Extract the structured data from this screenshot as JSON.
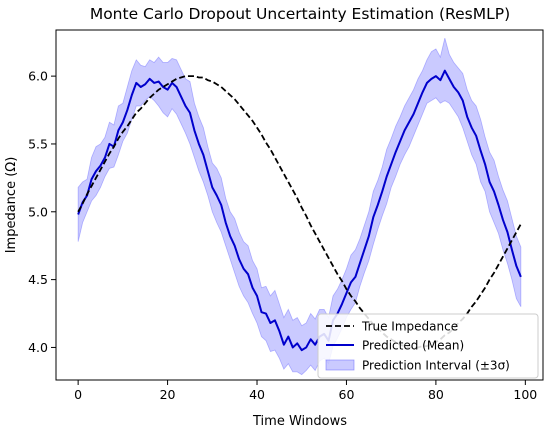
{
  "chart_data": {
    "type": "line",
    "title": "Monte Carlo Dropout Uncertainty Estimation (ResMLP)",
    "xlabel": "Time Windows",
    "ylabel": "Impedance (Ω)",
    "xlim": [
      -4.95,
      103.95
    ],
    "ylim": [
      3.76,
      6.34
    ],
    "xticks": [
      0,
      20,
      40,
      60,
      80,
      100
    ],
    "xtick_labels": [
      "0",
      "20",
      "40",
      "60",
      "80",
      "100"
    ],
    "yticks": [
      4.0,
      4.5,
      5.0,
      5.5,
      6.0
    ],
    "ytick_labels": [
      "4.0",
      "4.5",
      "5.0",
      "5.5",
      "6.0"
    ],
    "grid": false,
    "legend_position": "lower-right",
    "legend": [
      "True Impedance",
      "Predicted (Mean)",
      "Prediction Interval (±3σ)"
    ],
    "x": [
      0,
      1,
      2,
      3,
      4,
      5,
      6,
      7,
      8,
      9,
      10,
      11,
      12,
      13,
      14,
      15,
      16,
      17,
      18,
      19,
      20,
      21,
      22,
      23,
      24,
      25,
      26,
      27,
      28,
      29,
      30,
      31,
      32,
      33,
      34,
      35,
      36,
      37,
      38,
      39,
      40,
      41,
      42,
      43,
      44,
      45,
      46,
      47,
      48,
      49,
      50,
      51,
      52,
      53,
      54,
      55,
      56,
      57,
      58,
      59,
      60,
      61,
      62,
      63,
      64,
      65,
      66,
      67,
      68,
      69,
      70,
      71,
      72,
      73,
      74,
      75,
      76,
      77,
      78,
      79,
      80,
      81,
      82,
      83,
      84,
      85,
      86,
      87,
      88,
      89,
      90,
      91,
      92,
      93,
      94,
      95,
      96,
      97,
      98,
      99
    ],
    "series": [
      {
        "name": "True Impedance",
        "style": "dashed",
        "color": "#000000",
        "values": [
          5.0,
          5.06,
          5.13,
          5.19,
          5.25,
          5.31,
          5.37,
          5.43,
          5.48,
          5.54,
          5.59,
          5.63,
          5.68,
          5.73,
          5.76,
          5.8,
          5.84,
          5.87,
          5.9,
          5.92,
          5.94,
          5.96,
          5.98,
          5.99,
          6.0,
          6.0,
          6.0,
          5.99,
          5.99,
          5.97,
          5.96,
          5.94,
          5.92,
          5.89,
          5.86,
          5.83,
          5.79,
          5.75,
          5.71,
          5.67,
          5.62,
          5.57,
          5.51,
          5.46,
          5.4,
          5.34,
          5.28,
          5.22,
          5.16,
          5.1,
          5.03,
          4.97,
          4.9,
          4.84,
          4.78,
          4.72,
          4.66,
          4.6,
          4.54,
          4.49,
          4.43,
          4.38,
          4.34,
          4.29,
          4.25,
          4.21,
          4.17,
          4.14,
          4.11,
          4.08,
          4.06,
          4.04,
          4.02,
          4.01,
          4.0,
          4.0,
          4.0,
          4.01,
          4.01,
          4.03,
          4.04,
          4.06,
          4.09,
          4.11,
          4.14,
          4.18,
          4.21,
          4.25,
          4.3,
          4.34,
          4.39,
          4.44,
          4.5,
          4.55,
          4.61,
          4.67,
          4.73,
          4.79,
          4.85,
          4.91
        ]
      },
      {
        "name": "Predicted (Mean)",
        "style": "solid",
        "color": "#0000cc",
        "values": [
          4.98,
          5.07,
          5.12,
          5.24,
          5.3,
          5.34,
          5.4,
          5.5,
          5.48,
          5.6,
          5.66,
          5.75,
          5.86,
          5.95,
          5.92,
          5.94,
          5.98,
          5.95,
          5.96,
          5.92,
          5.9,
          5.95,
          5.92,
          5.85,
          5.78,
          5.73,
          5.6,
          5.5,
          5.42,
          5.3,
          5.18,
          5.12,
          5.05,
          4.92,
          4.82,
          4.75,
          4.65,
          4.58,
          4.54,
          4.44,
          4.38,
          4.26,
          4.25,
          4.18,
          4.2,
          4.12,
          4.02,
          4.08,
          4.0,
          4.03,
          3.98,
          4.0,
          4.06,
          4.02,
          4.08,
          4.1,
          4.05,
          4.2,
          4.25,
          4.32,
          4.4,
          4.48,
          4.52,
          4.62,
          4.72,
          4.82,
          4.96,
          5.05,
          5.15,
          5.26,
          5.35,
          5.44,
          5.52,
          5.6,
          5.66,
          5.72,
          5.8,
          5.88,
          5.95,
          5.98,
          6.0,
          5.97,
          6.04,
          5.98,
          5.92,
          5.88,
          5.82,
          5.7,
          5.62,
          5.56,
          5.45,
          5.35,
          5.22,
          5.15,
          5.05,
          4.94,
          4.85,
          4.72,
          4.6,
          4.52
        ]
      },
      {
        "name": "Prediction Interval (±3σ)",
        "style": "band",
        "color": "#6666ff",
        "lower": [
          4.78,
          4.92,
          5.0,
          5.08,
          5.12,
          5.18,
          5.26,
          5.32,
          5.33,
          5.42,
          5.52,
          5.58,
          5.68,
          5.78,
          5.78,
          5.82,
          5.85,
          5.82,
          5.78,
          5.73,
          5.7,
          5.76,
          5.72,
          5.65,
          5.58,
          5.5,
          5.4,
          5.3,
          5.22,
          5.12,
          5.0,
          4.92,
          4.85,
          4.75,
          4.65,
          4.55,
          4.45,
          4.38,
          4.33,
          4.25,
          4.18,
          4.08,
          4.05,
          3.97,
          3.98,
          3.92,
          3.84,
          3.88,
          3.82,
          3.82,
          3.8,
          3.83,
          3.87,
          3.83,
          3.9,
          3.92,
          3.88,
          4.01,
          4.07,
          4.14,
          4.22,
          4.28,
          4.33,
          4.45,
          4.55,
          4.64,
          4.76,
          4.87,
          4.97,
          5.06,
          5.18,
          5.26,
          5.35,
          5.42,
          5.48,
          5.56,
          5.64,
          5.72,
          5.8,
          5.82,
          5.84,
          5.8,
          5.82,
          5.8,
          5.75,
          5.7,
          5.62,
          5.52,
          5.42,
          5.35,
          5.22,
          5.15,
          5.0,
          4.92,
          4.84,
          4.72,
          4.62,
          4.5,
          4.36,
          4.3
        ],
        "upper": [
          5.18,
          5.22,
          5.24,
          5.4,
          5.48,
          5.5,
          5.55,
          5.66,
          5.64,
          5.78,
          5.8,
          5.92,
          6.04,
          6.12,
          6.08,
          6.07,
          6.12,
          6.1,
          6.14,
          6.1,
          6.1,
          6.13,
          6.12,
          6.05,
          5.98,
          5.96,
          5.8,
          5.7,
          5.62,
          5.48,
          5.36,
          5.32,
          5.25,
          5.1,
          5.0,
          4.95,
          4.85,
          4.78,
          4.75,
          4.64,
          4.58,
          4.44,
          4.45,
          4.38,
          4.42,
          4.32,
          4.22,
          4.28,
          4.2,
          4.22,
          4.16,
          4.18,
          4.25,
          4.21,
          4.28,
          4.28,
          4.22,
          4.38,
          4.43,
          4.5,
          4.58,
          4.68,
          4.72,
          4.8,
          4.9,
          5.0,
          5.15,
          5.23,
          5.33,
          5.46,
          5.54,
          5.63,
          5.7,
          5.78,
          5.84,
          5.9,
          5.98,
          6.04,
          6.12,
          6.18,
          6.2,
          6.14,
          6.28,
          6.16,
          6.1,
          6.06,
          6.02,
          5.9,
          5.82,
          5.78,
          5.68,
          5.55,
          5.44,
          5.38,
          5.26,
          5.16,
          5.08,
          4.95,
          4.82,
          4.74
        ]
      }
    ]
  }
}
